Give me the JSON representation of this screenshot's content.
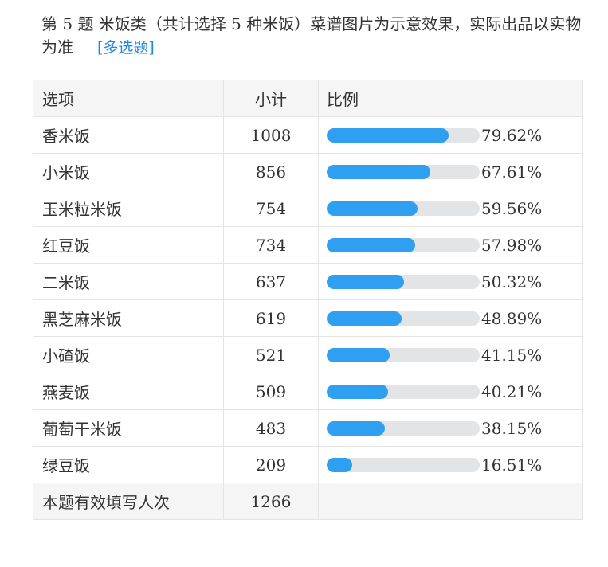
{
  "question": {
    "text": "第 5 题   米饭类（共计选择 5 种米饭）菜谱图片为示意效果，实际出品以实物为准",
    "tag": "[多选题]"
  },
  "table": {
    "headers": {
      "option": "选项",
      "count": "小计",
      "ratio": "比例"
    },
    "rows": [
      {
        "option": "香米饭",
        "count": "1008",
        "percent": "79.62%",
        "fraction": 0.7962
      },
      {
        "option": "小米饭",
        "count": "856",
        "percent": "67.61%",
        "fraction": 0.6761
      },
      {
        "option": "玉米粒米饭",
        "count": "754",
        "percent": "59.56%",
        "fraction": 0.5956
      },
      {
        "option": "红豆饭",
        "count": "734",
        "percent": "57.98%",
        "fraction": 0.5798
      },
      {
        "option": "二米饭",
        "count": "637",
        "percent": "50.32%",
        "fraction": 0.5032
      },
      {
        "option": "黑芝麻米饭",
        "count": "619",
        "percent": "48.89%",
        "fraction": 0.4889
      },
      {
        "option": "小碴饭",
        "count": "521",
        "percent": "41.15%",
        "fraction": 0.4115
      },
      {
        "option": "燕麦饭",
        "count": "509",
        "percent": "40.21%",
        "fraction": 0.4021
      },
      {
        "option": "葡萄干米饭",
        "count": "483",
        "percent": "38.15%",
        "fraction": 0.3815
      },
      {
        "option": "绿豆饭",
        "count": "209",
        "percent": "16.51%",
        "fraction": 0.1651
      }
    ],
    "total": {
      "label": "本题有效填写人次",
      "count": "1266"
    }
  },
  "colors": {
    "bar_fill": "#2e9ff1",
    "bar_track": "#e3e4e6",
    "tag": "#1e88e5"
  }
}
